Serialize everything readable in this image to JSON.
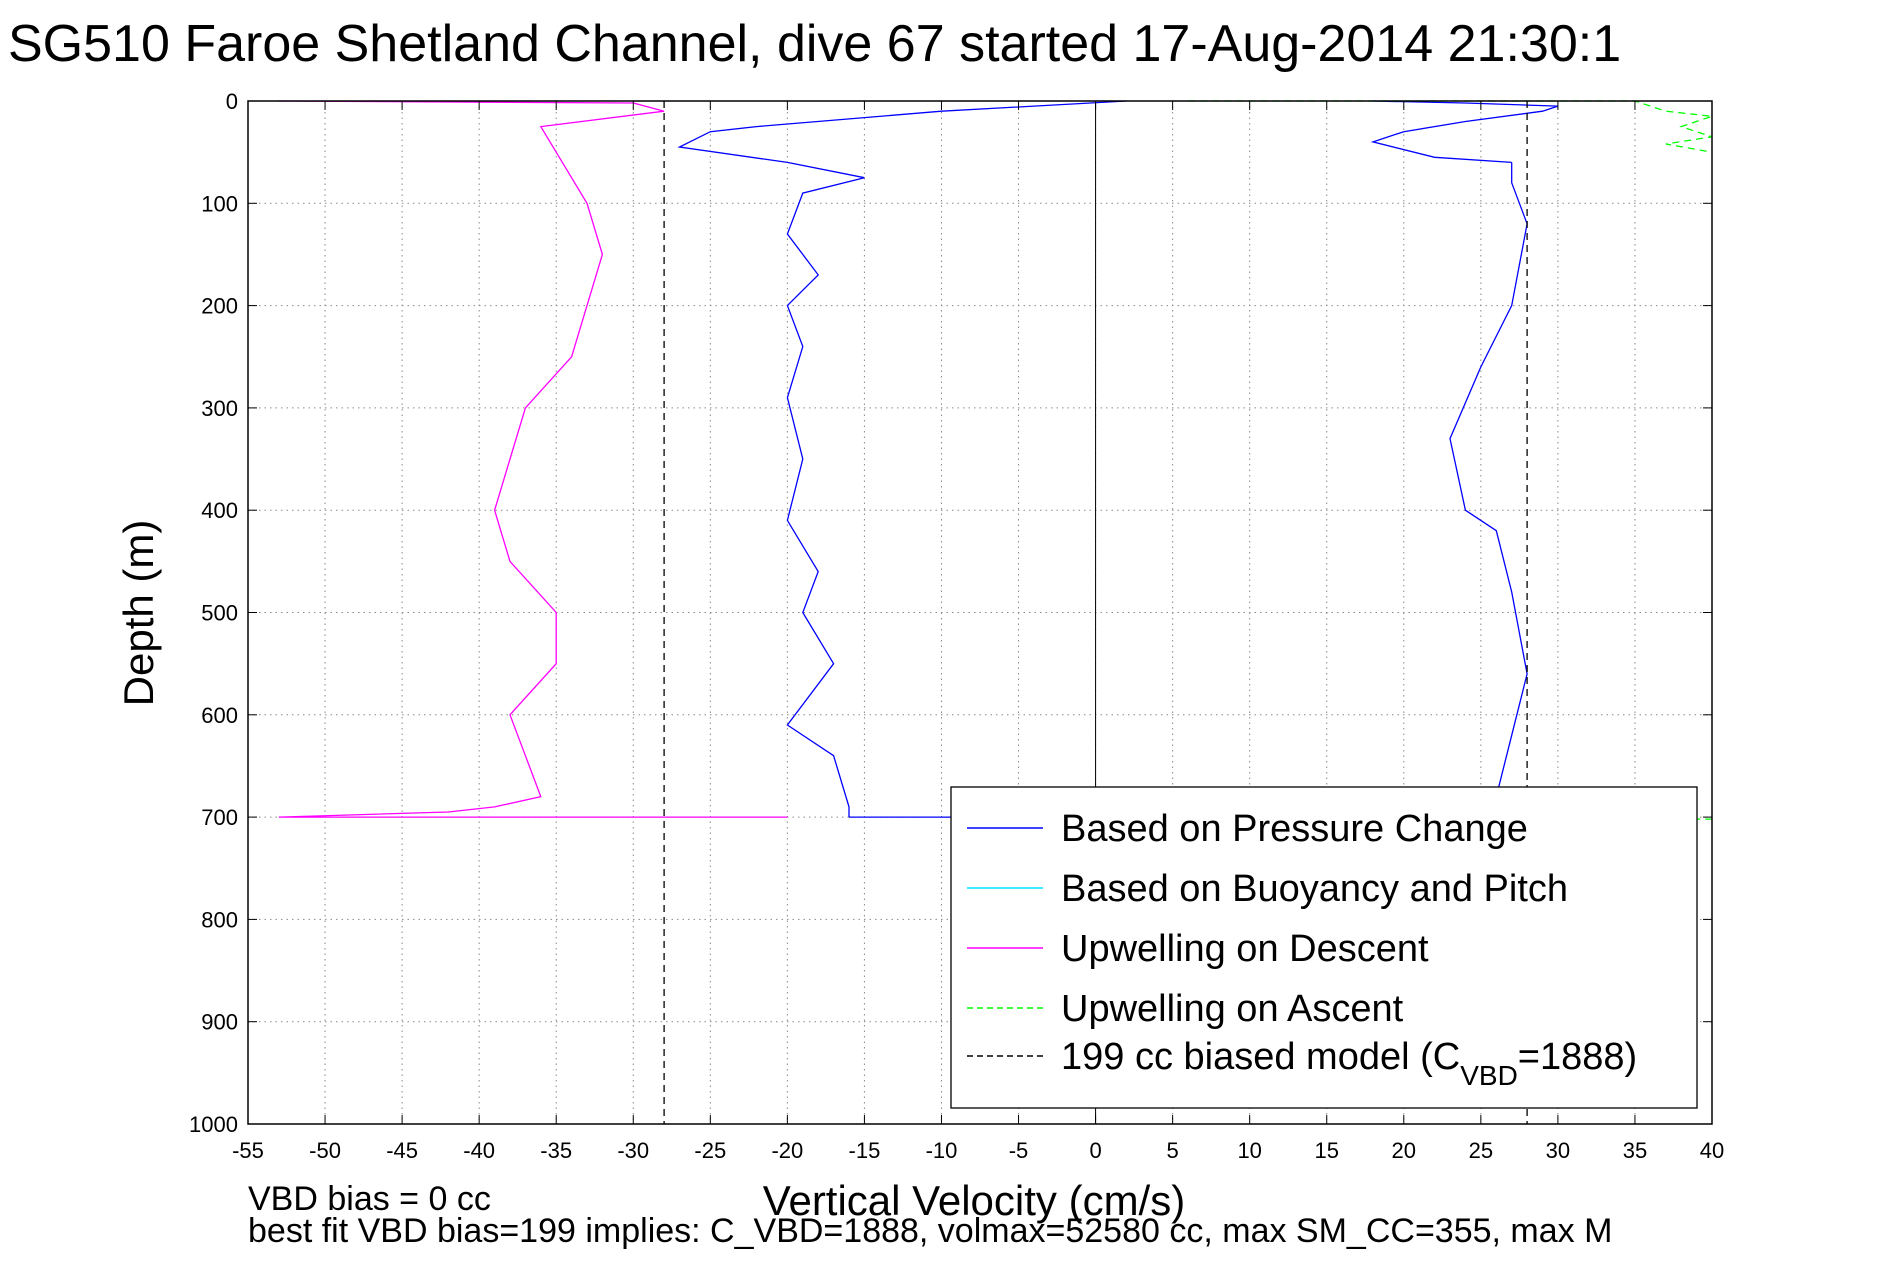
{
  "title": "SG510 Faroe Shetland Channel, dive 67 started 17-Aug-2014 21:30:1",
  "notes": {
    "vbd_bias": "VBD bias = 0 cc",
    "best_fit": "best fit VBD bias=199 implies: C_VBD=1888, volmax=52580 cc, max SM_CC=355, max M"
  },
  "colors": {
    "pressure": "#0000ff",
    "buoyancy": "#00e5ff",
    "descent": "#ff00ff",
    "ascent": "#00ff00",
    "model": "#000000"
  },
  "chart_data": {
    "type": "line",
    "xlabel": "Vertical Velocity (cm/s)",
    "ylabel": "Depth (m)",
    "xlim": [
      -55,
      40
    ],
    "ylim": [
      0,
      1000
    ],
    "y_reversed": true,
    "grid": true,
    "legend_position": "bottom-right",
    "x_ticks": [
      "-55",
      "-50",
      "-45",
      "-40",
      "-35",
      "-30",
      "-25",
      "-20",
      "-15",
      "-10",
      "-5",
      "0",
      "5",
      "10",
      "15",
      "20",
      "25",
      "30",
      "35",
      "40"
    ],
    "y_ticks": [
      "0",
      "100",
      "200",
      "300",
      "400",
      "500",
      "600",
      "700",
      "800",
      "900",
      "1000"
    ],
    "legend": [
      {
        "label": "Based on Pressure Change",
        "color": "#0000ff",
        "dash": false
      },
      {
        "label": "Based on Buoyancy and Pitch",
        "color": "#00e5ff",
        "dash": false
      },
      {
        "label": "Upwelling on Descent",
        "color": "#ff00ff",
        "dash": false
      },
      {
        "label": "Upwelling on Ascent",
        "color": "#00ff00",
        "dash": true
      },
      {
        "label": "199 cc biased model (C",
        "sub": "VBD",
        "tail": "=1888)",
        "color": "#000000",
        "dash": true
      }
    ],
    "series": [
      {
        "key": "pressure_descent",
        "color": "#0000ff",
        "dash": false,
        "x": [
          2,
          -10,
          -22,
          -25,
          -27,
          -20,
          -15,
          -19,
          -20,
          -18,
          -20,
          -19,
          -20,
          -19,
          -20,
          -18,
          -19,
          -17,
          -20,
          -17,
          -16,
          -16
        ],
        "y": [
          0,
          10,
          25,
          30,
          45,
          60,
          75,
          90,
          130,
          170,
          200,
          240,
          290,
          350,
          410,
          460,
          500,
          550,
          610,
          640,
          690,
          700
        ]
      },
      {
        "key": "pressure_ascent",
        "color": "#0000ff",
        "dash": false,
        "x": [
          -16,
          -8,
          26,
          27,
          28,
          27,
          26,
          24,
          23,
          25,
          27,
          28,
          27,
          27
        ],
        "y": [
          700,
          700,
          680,
          620,
          560,
          480,
          420,
          400,
          330,
          260,
          200,
          120,
          80,
          60
        ]
      },
      {
        "key": "pressure_ascent_upper",
        "color": "#0000ff",
        "dash": false,
        "x": [
          27,
          22,
          18,
          20,
          24,
          29,
          30,
          24,
          18
        ],
        "y": [
          60,
          55,
          40,
          30,
          20,
          10,
          5,
          2,
          0
        ]
      },
      {
        "key": "descent",
        "color": "#ff00ff",
        "dash": false,
        "x": [
          -53,
          -30,
          -28,
          -36,
          -35,
          -33,
          -32,
          -33,
          -34,
          -37,
          -38,
          -39,
          -38,
          -35,
          -35,
          -38,
          -37,
          -36,
          -39,
          -42,
          -53,
          -20
        ],
        "y": [
          0,
          2,
          10,
          25,
          50,
          100,
          150,
          200,
          250,
          300,
          350,
          400,
          450,
          500,
          550,
          600,
          640,
          680,
          690,
          695,
          700,
          700
        ]
      },
      {
        "key": "ascent",
        "color": "#00ff00",
        "dash": true,
        "x": [
          6,
          35,
          37,
          40,
          38,
          40,
          37,
          40
        ],
        "y": [
          0,
          0,
          10,
          15,
          25,
          35,
          42,
          50
        ]
      },
      {
        "key": "ascent_bottom",
        "color": "#00ff00",
        "dash": true,
        "x": [
          38,
          40
        ],
        "y": [
          702,
          702
        ]
      },
      {
        "key": "model_descent",
        "color": "#000000",
        "dash": true,
        "x": [
          -28,
          -28
        ],
        "y": [
          0,
          1000
        ]
      },
      {
        "key": "model_ascent",
        "color": "#000000",
        "dash": true,
        "x": [
          28,
          28
        ],
        "y": [
          0,
          1000
        ]
      }
    ]
  }
}
